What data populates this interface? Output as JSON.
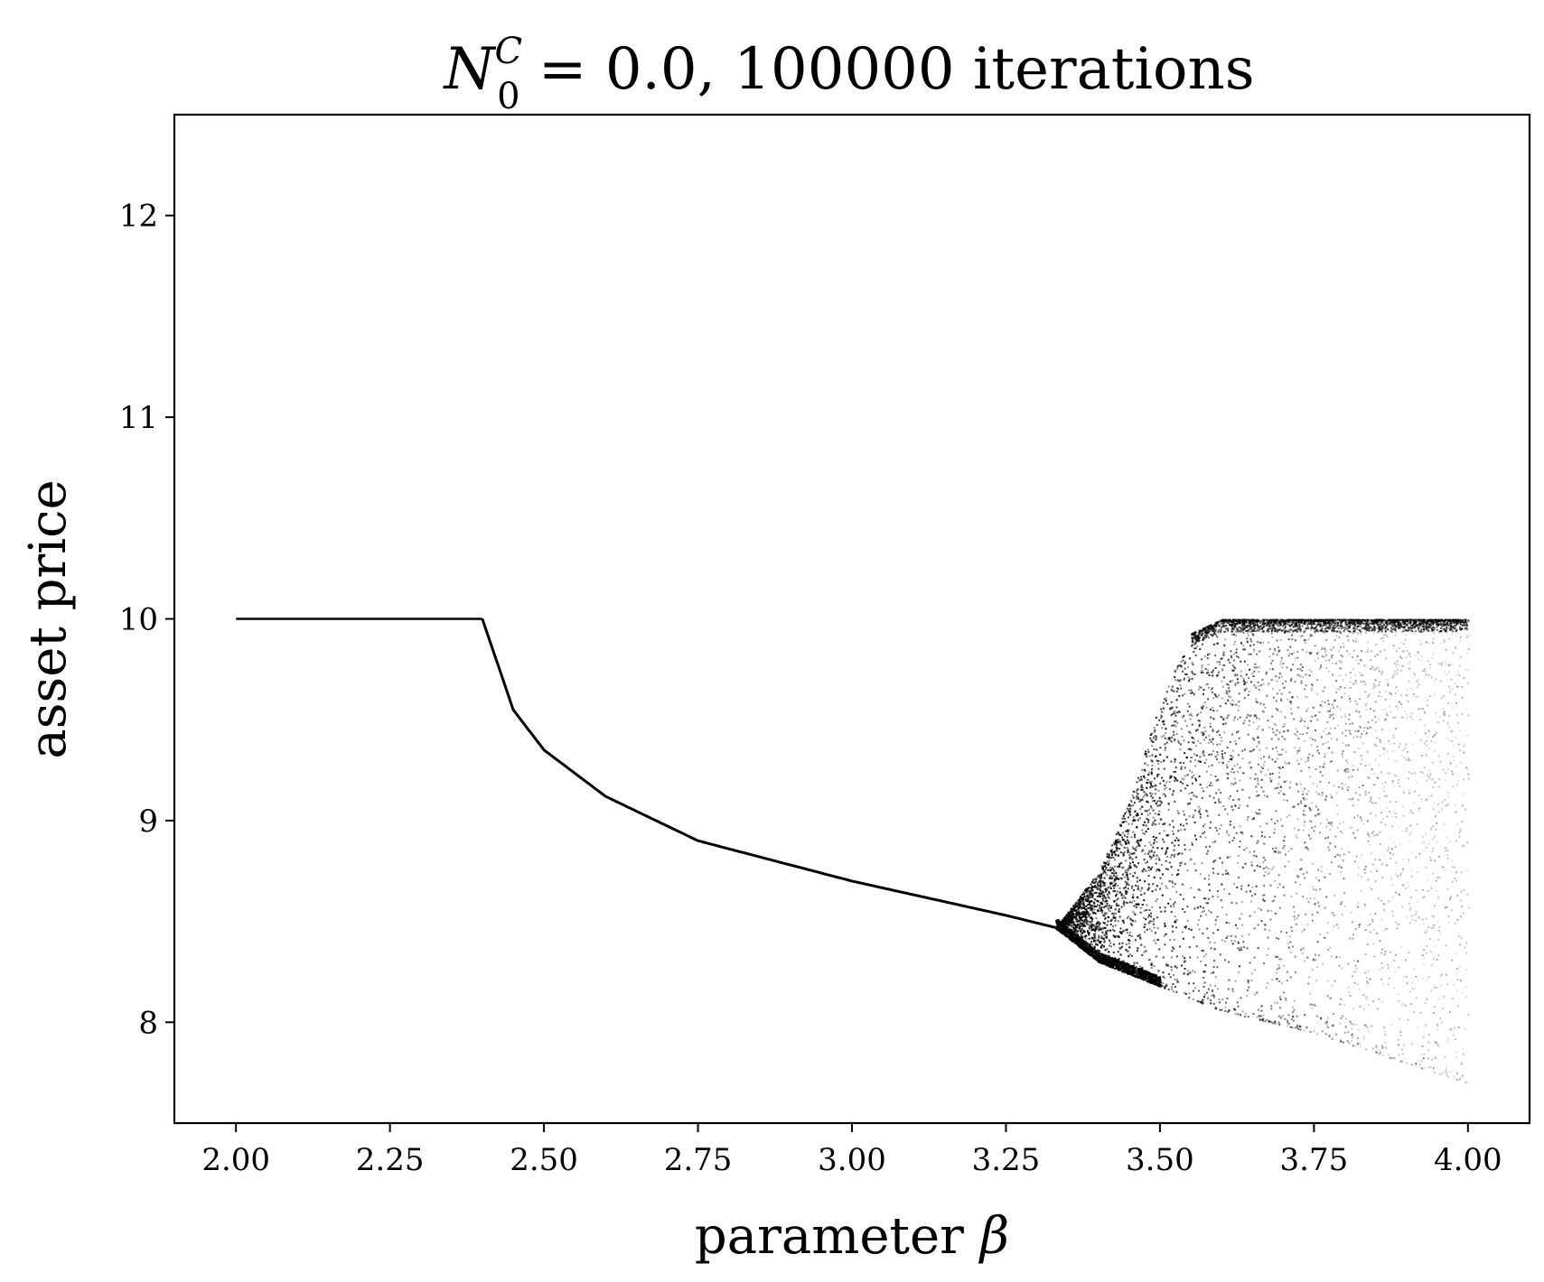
{
  "chart_data": {
    "type": "scatter",
    "title": {
      "symbol": "N",
      "superscript": "C",
      "subscript": "0",
      "rest": " = 0.0, 100000 iterations"
    },
    "xlabel": {
      "text": "parameter ",
      "symbol": "β"
    },
    "ylabel": "asset price",
    "xlim": [
      1.9,
      4.1
    ],
    "ylim": [
      7.5,
      12.5
    ],
    "xticks": [
      {
        "value": 2.0,
        "label": "2.00"
      },
      {
        "value": 2.25,
        "label": "2.25"
      },
      {
        "value": 2.5,
        "label": "2.50"
      },
      {
        "value": 2.75,
        "label": "2.75"
      },
      {
        "value": 3.0,
        "label": "3.00"
      },
      {
        "value": 3.25,
        "label": "3.25"
      },
      {
        "value": 3.5,
        "label": "3.50"
      },
      {
        "value": 3.75,
        "label": "3.75"
      },
      {
        "value": 4.0,
        "label": "4.00"
      }
    ],
    "yticks": [
      {
        "value": 8,
        "label": "8"
      },
      {
        "value": 9,
        "label": "9"
      },
      {
        "value": 10,
        "label": "10"
      },
      {
        "value": 11,
        "label": "11"
      },
      {
        "value": 12,
        "label": "12"
      }
    ],
    "grid": false,
    "marker_color": "#000000",
    "regions": {
      "stable_fixed_point": {
        "beta_range": [
          2.0,
          2.4
        ],
        "price": 10.0
      },
      "decreasing_branch": {
        "beta": [
          2.4,
          2.45,
          2.5,
          2.6,
          2.75,
          3.0,
          3.25,
          3.33
        ],
        "price": [
          10.0,
          9.55,
          9.35,
          9.12,
          8.9,
          8.7,
          8.53,
          8.47
        ]
      },
      "chaotic_band": {
        "beta": [
          3.33,
          3.4,
          3.45,
          3.5,
          3.55,
          3.6,
          3.75,
          4.0
        ],
        "upper": [
          8.47,
          8.75,
          9.1,
          9.6,
          9.93,
          10.0,
          10.0,
          10.0
        ],
        "lower": [
          8.47,
          8.3,
          8.24,
          8.18,
          8.12,
          8.06,
          7.95,
          7.7
        ]
      }
    }
  }
}
